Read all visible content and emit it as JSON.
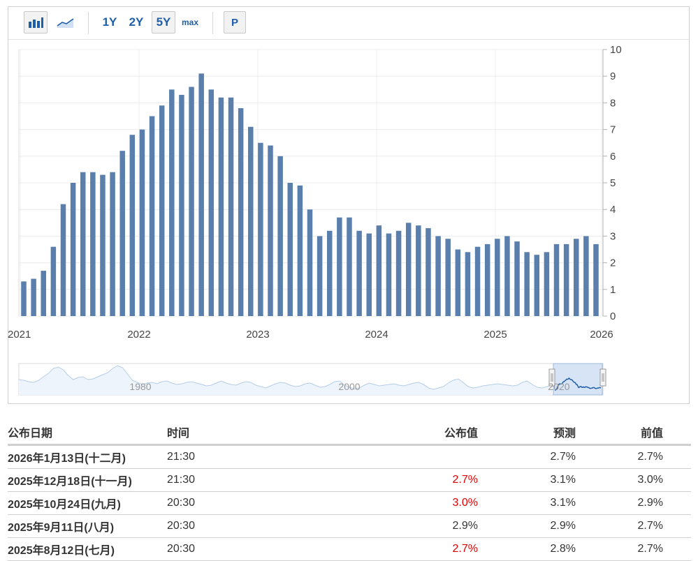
{
  "toolbar": {
    "bar_chart_icon": "bar-chart-icon",
    "line_chart_icon": "line-chart-icon",
    "range_1y": "1Y",
    "range_2y": "2Y",
    "range_5y": "5Y",
    "range_max": "max",
    "p_button": "P",
    "active_range": "5Y"
  },
  "chart_data": {
    "type": "bar",
    "title": "",
    "xlabel": "",
    "ylabel": "",
    "ylim": [
      0,
      10
    ],
    "y_ticks": [
      "0",
      "1",
      "2",
      "3",
      "4",
      "5",
      "6",
      "7",
      "8",
      "9",
      "10"
    ],
    "y_axis_side": "right",
    "x_tick_labels": [
      "2021",
      "2022",
      "2023",
      "2024",
      "2025",
      "2026"
    ],
    "grid": true,
    "bar_color": "#5b7fad",
    "values": [
      1.3,
      1.4,
      1.7,
      2.6,
      4.2,
      5.0,
      5.4,
      5.4,
      5.3,
      5.4,
      6.2,
      6.8,
      7.0,
      7.5,
      7.9,
      8.5,
      8.3,
      8.6,
      9.1,
      8.5,
      8.2,
      8.2,
      7.8,
      7.1,
      6.5,
      6.4,
      6.0,
      5.0,
      4.9,
      4.0,
      3.0,
      3.2,
      3.7,
      3.7,
      3.2,
      3.1,
      3.4,
      3.1,
      3.2,
      3.5,
      3.4,
      3.3,
      3.0,
      2.9,
      2.5,
      2.4,
      2.6,
      2.7,
      2.9,
      3.0,
      2.8,
      2.4,
      2.3,
      2.4,
      2.7,
      2.7,
      2.9,
      3.0,
      2.7
    ]
  },
  "navigator": {
    "labels": [
      "1980",
      "2000",
      "2020"
    ],
    "line_color": "#b5cde8",
    "highlight_color": "#1f5ea8"
  },
  "table": {
    "headers": {
      "date": "公布日期",
      "time": "时间",
      "published": "公布值",
      "forecast": "预测",
      "previous": "前值"
    },
    "rows": [
      {
        "date": "2026年1月13日(十二月)",
        "time": "21:30",
        "published": "",
        "forecast": "2.7%",
        "previous": "2.7%",
        "published_color": ""
      },
      {
        "date": "2025年12月18日(十一月)",
        "time": "21:30",
        "published": "2.7%",
        "forecast": "3.1%",
        "previous": "3.0%",
        "published_color": "red"
      },
      {
        "date": "2025年10月24日(九月)",
        "time": "20:30",
        "published": "3.0%",
        "forecast": "3.1%",
        "previous": "2.9%",
        "published_color": "red"
      },
      {
        "date": "2025年9月11日(八月)",
        "time": "20:30",
        "published": "2.9%",
        "forecast": "2.9%",
        "previous": "2.7%",
        "published_color": ""
      },
      {
        "date": "2025年8月12日(七月)",
        "time": "20:30",
        "published": "2.7%",
        "forecast": "2.8%",
        "previous": "2.7%",
        "published_color": "red"
      }
    ]
  }
}
